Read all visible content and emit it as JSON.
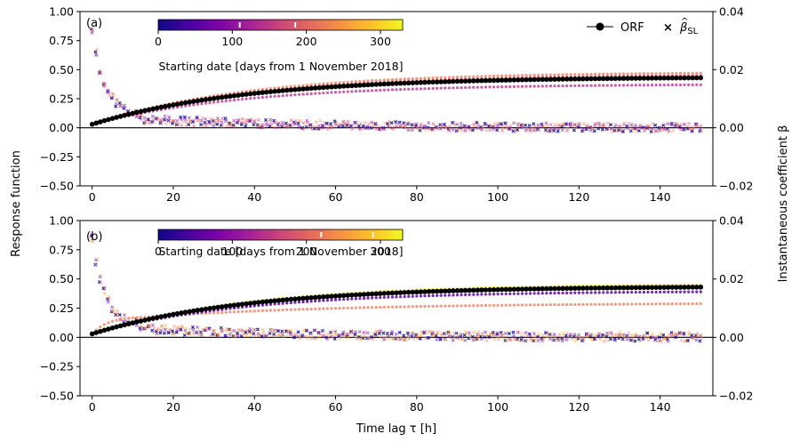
{
  "chart_data": {
    "type": "scatter",
    "ylabel_left": "Response function",
    "ylabel_right": "Instantaneous coefficient β",
    "xlabel": "Time lag τ [h]",
    "xlim": [
      -3,
      153
    ],
    "x_ticks": [
      "0",
      "20",
      "40",
      "60",
      "80",
      "100",
      "120",
      "140"
    ],
    "left_ylim": [
      -0.5,
      1.0
    ],
    "left_ticks": [
      "−0.50",
      "−0.25",
      "0.00",
      "0.25",
      "0.50",
      "0.75",
      "1.00"
    ],
    "right_ylim": [
      -0.02,
      0.04
    ],
    "right_ticks": [
      "−0.02",
      "0.00",
      "0.02",
      "0.04"
    ],
    "legend": {
      "orf": "ORF",
      "beta_prefix": "β",
      "beta_hat": "^",
      "beta_sup": "SL",
      "placement": "top-right"
    },
    "colorbar": {
      "label": "Starting date [days from 1 November 2018]",
      "ticks": [
        "0",
        "100",
        "200",
        "300"
      ],
      "range": [
        0,
        330
      ],
      "cmap": "plasma"
    },
    "panels": [
      {
        "label": "(a)",
        "colorbar_markers": [
          110,
          185
        ],
        "orf_series": [
          {
            "color": "#000000",
            "final": 0.43
          },
          {
            "color": "#f0866a",
            "final": 0.47
          },
          {
            "color": "#e16a86",
            "final": 0.45
          },
          {
            "color": "#c13f9a",
            "final": 0.37
          }
        ],
        "beta_colors": [
          "#0d0887",
          "#7e03a8",
          "#cc4778",
          "#f0866a"
        ]
      },
      {
        "label": "(b)",
        "colorbar_markers": [
          220,
          290
        ],
        "orf_series": [
          {
            "color": "#000000",
            "final": 0.43
          },
          {
            "color": "#fca636",
            "final": 0.44
          },
          {
            "color": "#f0f921",
            "final": 0.45
          },
          {
            "color": "#5c01a6",
            "final": 0.39
          },
          {
            "color": "#f0866a",
            "final": 0.29,
            "start_sat": 0.18
          }
        ],
        "beta_colors": [
          "#0d0887",
          "#6a00a8",
          "#fca636",
          "#f0866a"
        ]
      }
    ]
  }
}
